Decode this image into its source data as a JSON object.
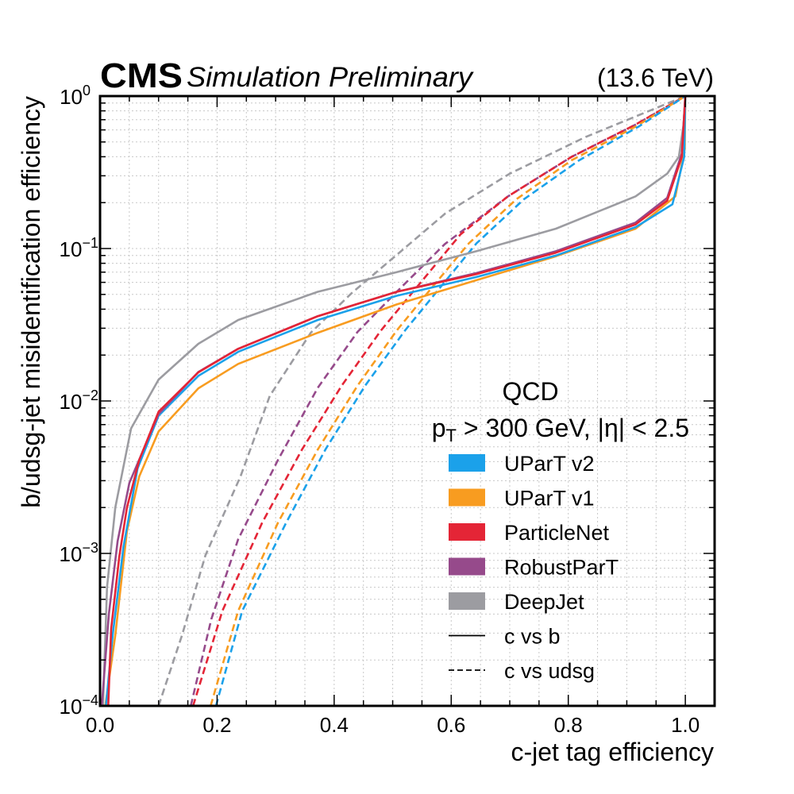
{
  "chart_data": {
    "type": "line",
    "header": {
      "experiment": "CMS",
      "status": "Simulation Preliminary",
      "energy": "(13.6 TeV)"
    },
    "xlabel": "c-jet tag efficiency",
    "ylabel": "b/udsg-jet misidentification efficiency",
    "xlim": [
      0.0,
      1.05
    ],
    "ylim": [
      0.0001,
      1.0
    ],
    "yscale": "log",
    "grid": true,
    "x_ticks": [
      "0.0",
      "0.2",
      "0.4",
      "0.6",
      "0.8",
      "1.0"
    ],
    "x_tick_values": [
      0.0,
      0.2,
      0.4,
      0.6,
      0.8,
      1.0
    ],
    "y_ticks": [
      {
        "base": "10",
        "exp": "0",
        "value": 1.0
      },
      {
        "base": "10",
        "exp": "−1",
        "value": 0.1
      },
      {
        "base": "10",
        "exp": "−2",
        "value": 0.01
      },
      {
        "base": "10",
        "exp": "−3",
        "value": 0.001
      },
      {
        "base": "10",
        "exp": "−4",
        "value": 0.0001
      }
    ],
    "annotation": {
      "process": "QCD",
      "cuts_pt": "p",
      "cuts_pt_sub": "T",
      "cuts_rest": " > 300 GeV, |η| < 2.5"
    },
    "legend": {
      "placement": "lower-right",
      "entries": [
        {
          "label": "UParT v2",
          "color": "#1ba1ea",
          "kind": "patch"
        },
        {
          "label": "UParT v1",
          "color": "#f89c20",
          "kind": "patch"
        },
        {
          "label": "ParticleNet",
          "color": "#e42536",
          "kind": "patch"
        },
        {
          "label": "RobustParT",
          "color": "#964a8b",
          "kind": "patch"
        },
        {
          "label": "DeepJet",
          "color": "#9c9ca1",
          "kind": "patch"
        },
        {
          "label": "c vs b",
          "color": "#000000",
          "kind": "solid"
        },
        {
          "label": "c vs udsg",
          "color": "#000000",
          "kind": "dashed"
        }
      ]
    },
    "series": [
      {
        "name": "DeepJet c vs udsg",
        "tagger": "DeepJet",
        "color": "#9c9ca1",
        "style": "dashed",
        "x": [
          0.1,
          0.14,
          0.18,
          0.24,
          0.29,
          0.36,
          0.43,
          0.51,
          0.59,
          0.7,
          0.83,
          1.0
        ],
        "y": [
          0.0001,
          0.00029,
          0.00097,
          0.0032,
          0.0108,
          0.028,
          0.051,
          0.093,
          0.17,
          0.31,
          0.54,
          1.0
        ]
      },
      {
        "name": "RobustParT c vs udsg",
        "tagger": "RobustParT",
        "color": "#964a8b",
        "style": "dashed",
        "x": [
          0.155,
          0.19,
          0.236,
          0.304,
          0.372,
          0.44,
          0.507,
          0.589,
          0.697,
          0.806,
          0.915,
          1.0
        ],
        "y": [
          0.0001,
          0.00037,
          0.00124,
          0.0041,
          0.0122,
          0.0284,
          0.052,
          0.107,
          0.22,
          0.4,
          0.65,
          1.0
        ]
      },
      {
        "name": "ParticleNet c vs udsg",
        "tagger": "ParticleNet",
        "color": "#e42536",
        "style": "dashed",
        "x": [
          0.159,
          0.209,
          0.277,
          0.345,
          0.413,
          0.48,
          0.548,
          0.616,
          0.697,
          0.806,
          0.915,
          1.0
        ],
        "y": [
          0.0001,
          0.00042,
          0.00159,
          0.0048,
          0.0126,
          0.029,
          0.06,
          0.124,
          0.22,
          0.4,
          0.65,
          1.0
        ]
      },
      {
        "name": "UParT v1 c vs udsg",
        "tagger": "UParT v1",
        "color": "#f89c20",
        "style": "dashed",
        "x": [
          0.189,
          0.236,
          0.304,
          0.372,
          0.44,
          0.507,
          0.568,
          0.63,
          0.711,
          0.806,
          0.915,
          1.0
        ],
        "y": [
          0.0001,
          0.00042,
          0.00159,
          0.0048,
          0.0126,
          0.029,
          0.056,
          0.108,
          0.21,
          0.38,
          0.63,
          1.0
        ]
      },
      {
        "name": "UParT v2 c vs udsg",
        "tagger": "UParT v2",
        "color": "#1ba1ea",
        "style": "dashed",
        "x": [
          0.198,
          0.243,
          0.318,
          0.385,
          0.453,
          0.521,
          0.582,
          0.643,
          0.724,
          0.819,
          0.92,
          1.0
        ],
        "y": [
          0.0001,
          0.00042,
          0.00159,
          0.0048,
          0.0126,
          0.029,
          0.056,
          0.108,
          0.21,
          0.38,
          0.63,
          1.0
        ]
      },
      {
        "name": "DeepJet c vs b",
        "tagger": "DeepJet",
        "color": "#9c9ca1",
        "style": "solid",
        "x": [
          0.005,
          0.012,
          0.026,
          0.053,
          0.1,
          0.168,
          0.236,
          0.372,
          0.507,
          0.643,
          0.779,
          0.915,
          0.969,
          0.989,
          0.997,
          1.0
        ],
        "y": [
          0.0001,
          0.0006,
          0.002,
          0.0066,
          0.0138,
          0.0237,
          0.034,
          0.052,
          0.07,
          0.096,
          0.135,
          0.22,
          0.31,
          0.4,
          0.65,
          1.0
        ]
      },
      {
        "name": "UParT v1 c vs b",
        "tagger": "UParT v1",
        "color": "#f89c20",
        "style": "solid",
        "x": [
          0.009,
          0.026,
          0.046,
          0.067,
          0.1,
          0.168,
          0.236,
          0.372,
          0.507,
          0.643,
          0.779,
          0.915,
          0.983,
          0.999,
          1.0
        ],
        "y": [
          0.0001,
          0.00029,
          0.0014,
          0.0032,
          0.0063,
          0.0121,
          0.0175,
          0.028,
          0.043,
          0.062,
          0.089,
          0.135,
          0.22,
          0.45,
          1.0
        ]
      },
      {
        "name": "UParT v2 c vs b",
        "tagger": "UParT v2",
        "color": "#1ba1ea",
        "style": "solid",
        "x": [
          0.01,
          0.022,
          0.04,
          0.064,
          0.1,
          0.168,
          0.236,
          0.372,
          0.507,
          0.643,
          0.779,
          0.915,
          0.978,
          0.998,
          1.0
        ],
        "y": [
          0.0001,
          0.0003,
          0.0011,
          0.0036,
          0.008,
          0.0146,
          0.021,
          0.034,
          0.049,
          0.065,
          0.09,
          0.138,
          0.195,
          0.4,
          1.0
        ]
      },
      {
        "name": "RobustParT c vs b",
        "tagger": "RobustParT",
        "color": "#964a8b",
        "style": "solid",
        "x": [
          0.003,
          0.015,
          0.03,
          0.05,
          0.1,
          0.168,
          0.236,
          0.372,
          0.507,
          0.643,
          0.779,
          0.915,
          0.969,
          0.994,
          1.0
        ],
        "y": [
          0.0001,
          0.0004,
          0.0012,
          0.0029,
          0.0082,
          0.0155,
          0.022,
          0.036,
          0.052,
          0.069,
          0.096,
          0.148,
          0.215,
          0.42,
          1.0
        ]
      },
      {
        "name": "ParticleNet c vs b",
        "tagger": "ParticleNet",
        "color": "#e42536",
        "style": "solid",
        "x": [
          0.014,
          0.019,
          0.033,
          0.046,
          0.067,
          0.1,
          0.168,
          0.236,
          0.372,
          0.507,
          0.643,
          0.779,
          0.915,
          0.969,
          0.994,
          1.0
        ],
        "y": [
          0.0001,
          0.00032,
          0.00096,
          0.002,
          0.0041,
          0.0085,
          0.0154,
          0.022,
          0.036,
          0.052,
          0.068,
          0.094,
          0.144,
          0.206,
          0.4,
          1.0
        ]
      }
    ]
  }
}
